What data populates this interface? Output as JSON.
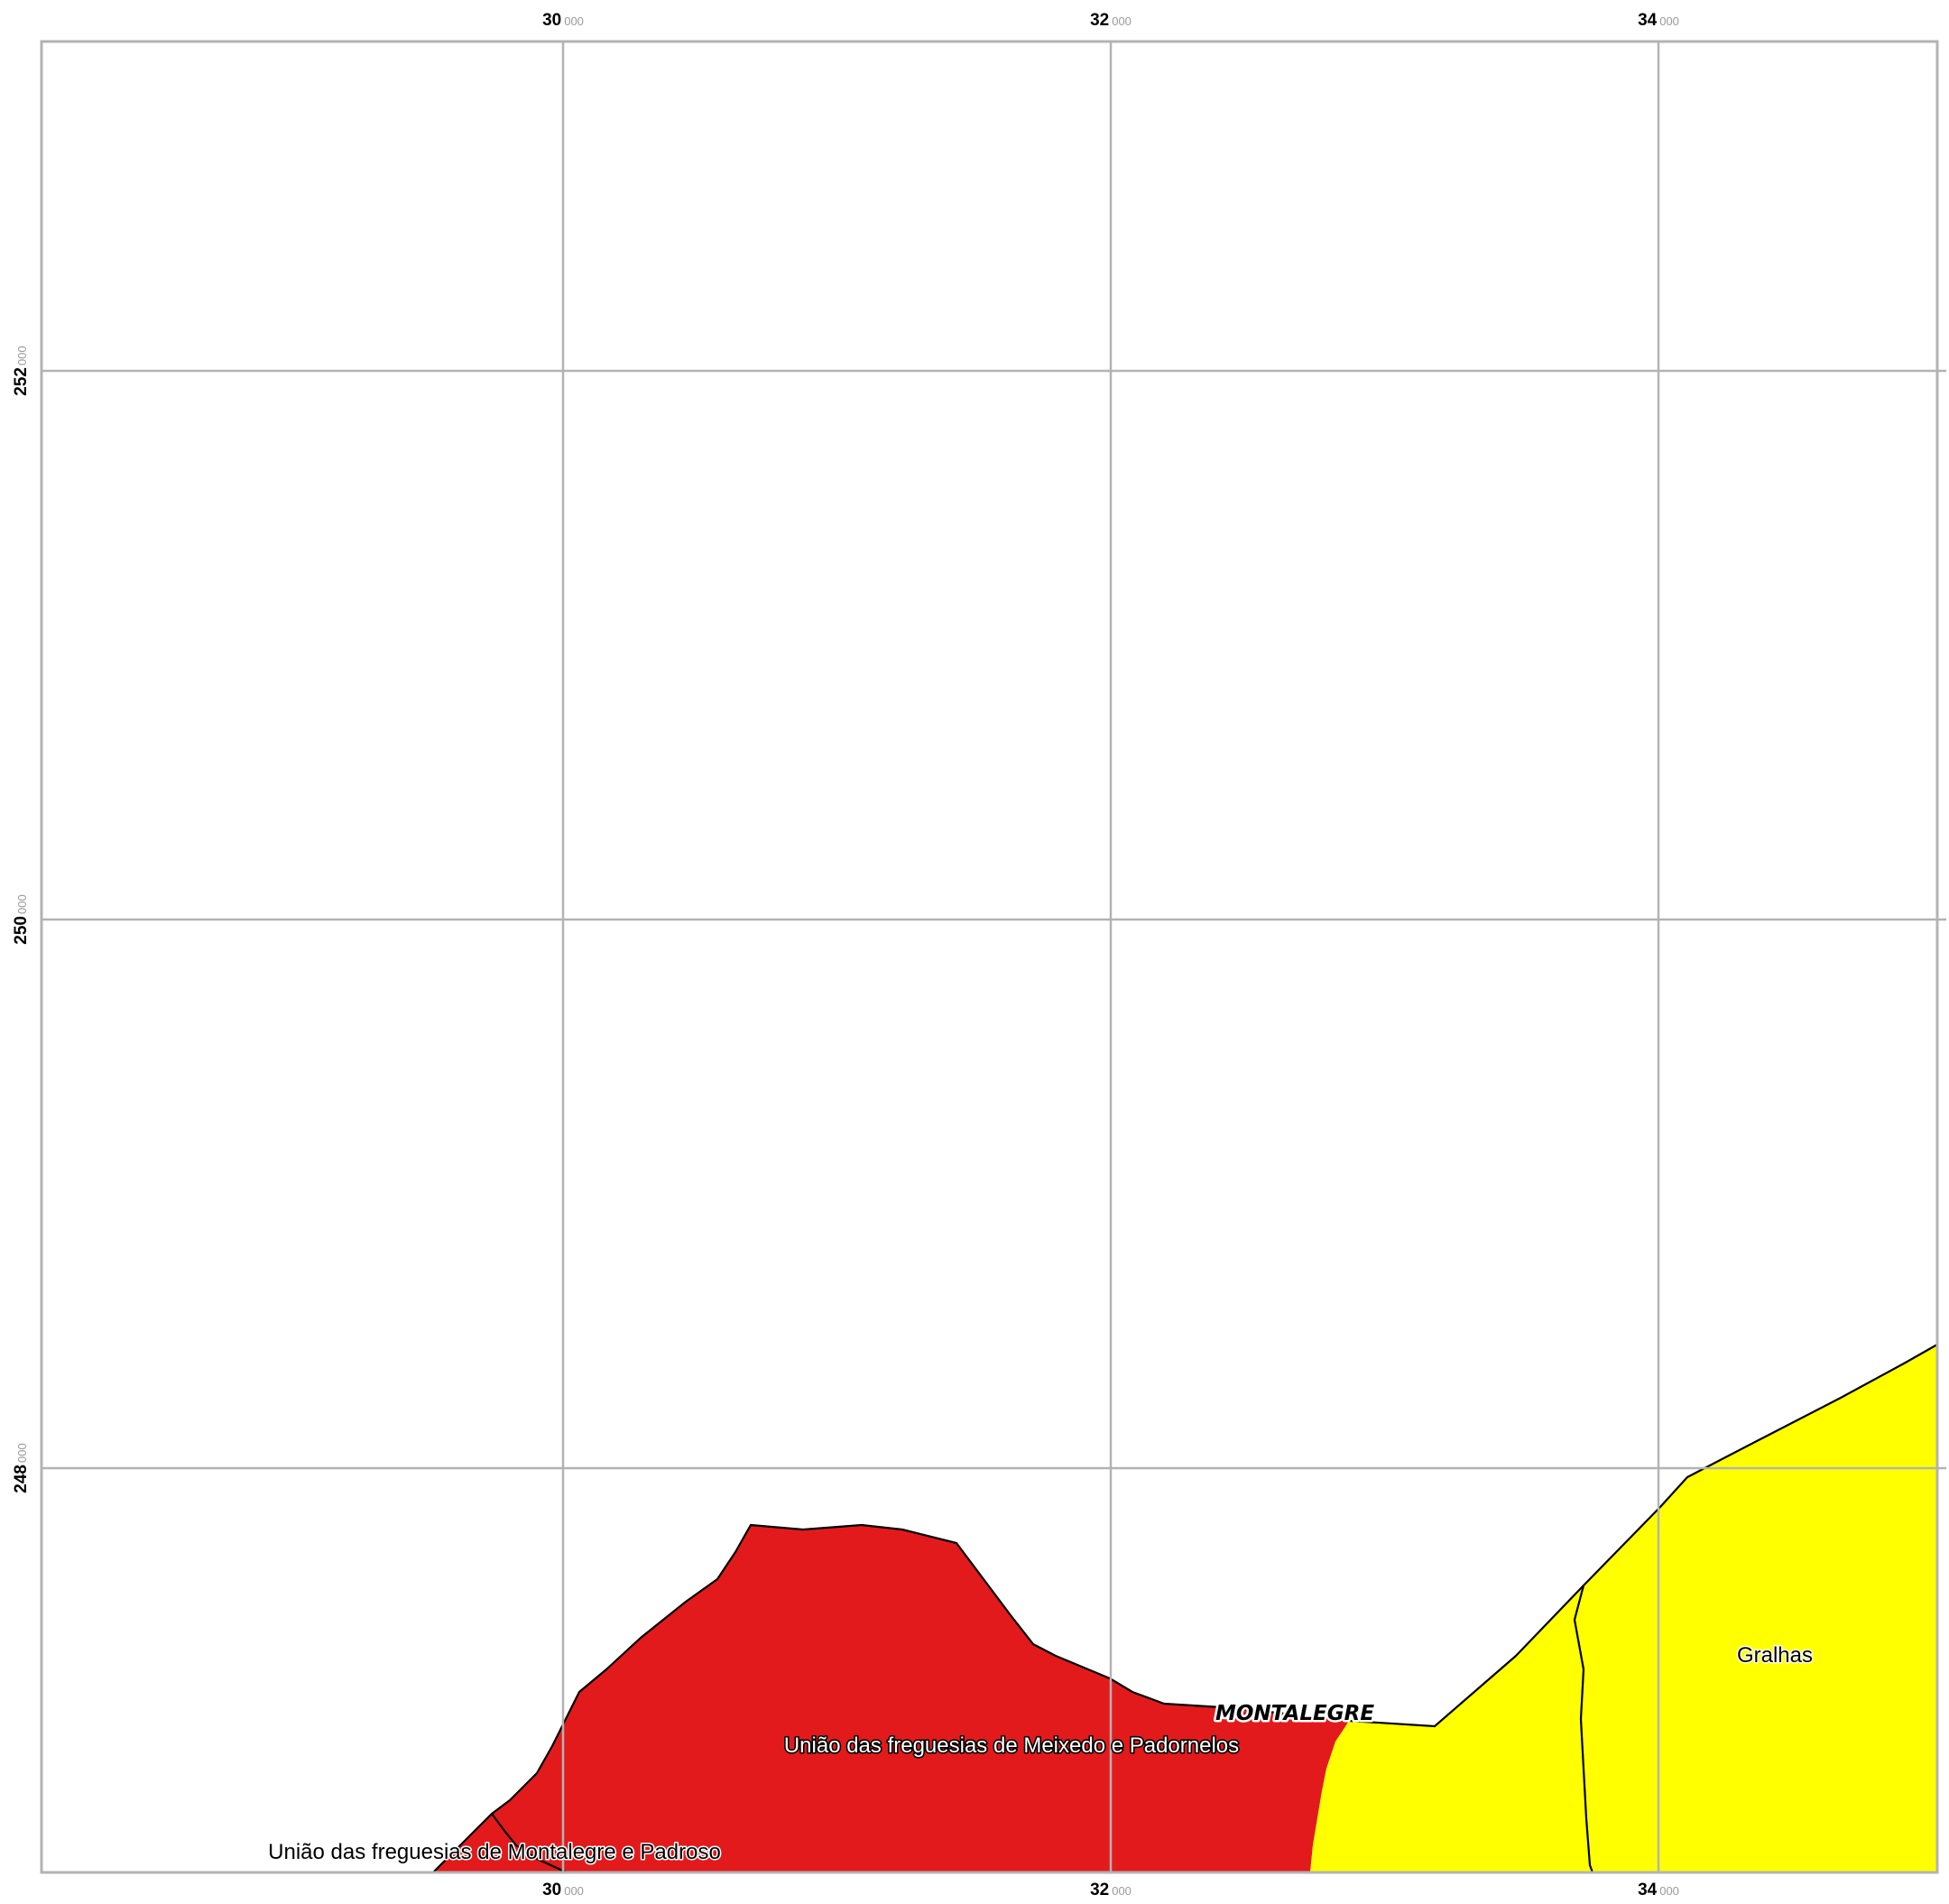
{
  "map": {
    "grid": {
      "x_ticks": [
        {
          "major": "30",
          "minor": "000"
        },
        {
          "major": "32",
          "minor": "000"
        },
        {
          "major": "34",
          "minor": "000"
        }
      ],
      "y_ticks": [
        {
          "major": "252",
          "minor": "000"
        },
        {
          "major": "250",
          "minor": "000"
        },
        {
          "major": "248",
          "minor": "000"
        }
      ]
    },
    "regions": [
      {
        "id": "meixedo-padornelos",
        "color": "#e31a1c"
      },
      {
        "id": "gralhas",
        "color": "#ffff00"
      }
    ],
    "labels": {
      "meixedo_padornelos": "União das freguesias de Meixedo e Padornelos",
      "montalegre_padroso": "União das freguesias de Montalegre e Padroso",
      "gralhas": "Gralhas",
      "municipality": "MONTALEGRE"
    }
  }
}
